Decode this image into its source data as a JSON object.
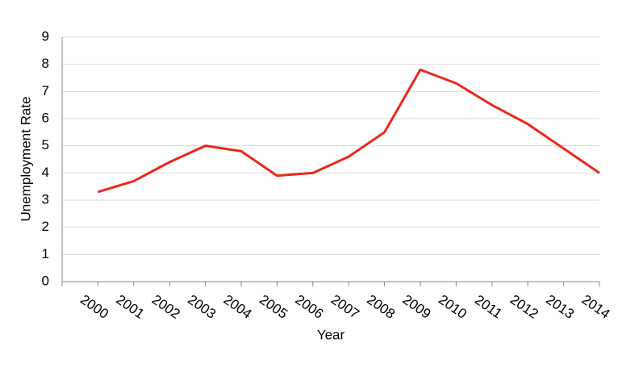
{
  "chart_data": {
    "type": "line",
    "x": [
      2000,
      2001,
      2002,
      2003,
      2004,
      2005,
      2006,
      2007,
      2008,
      2009,
      2010,
      2011,
      2012,
      2013,
      2014
    ],
    "series": [
      {
        "name": "Unemployment Rate",
        "color": "#e8291c",
        "values": [
          3.3,
          3.7,
          4.4,
          5.0,
          4.8,
          3.9,
          4.0,
          4.6,
          5.5,
          7.8,
          7.3,
          6.5,
          5.8,
          4.9,
          4.0
        ]
      }
    ],
    "xlim": [
      1999,
      2014
    ],
    "xticks": [
      2000,
      2001,
      2002,
      2003,
      2004,
      2005,
      2006,
      2007,
      2008,
      2009,
      2010,
      2011,
      2012,
      2013,
      2014
    ],
    "ylim": [
      0,
      9
    ],
    "yticks": [
      0,
      1,
      2,
      3,
      4,
      5,
      6,
      7,
      8,
      9
    ],
    "xlabel": "Year",
    "ylabel": "Unemployment Rate",
    "grid": true
  }
}
